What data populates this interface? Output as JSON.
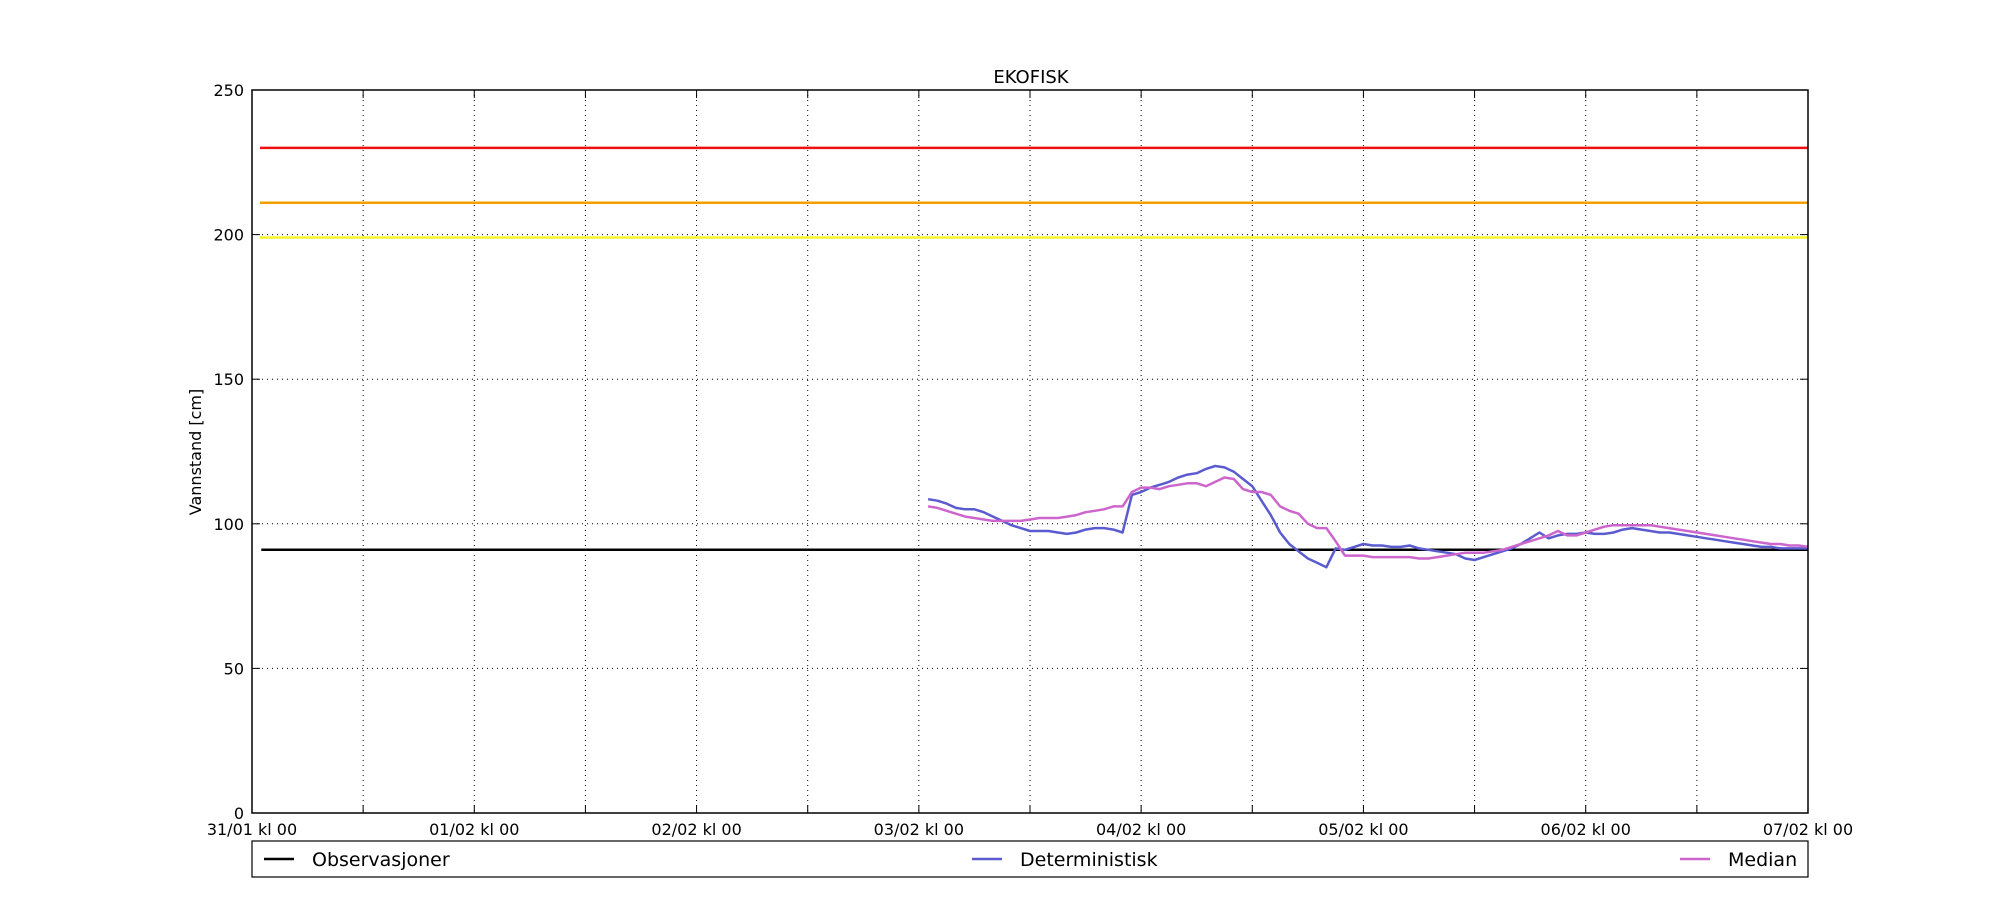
{
  "chart_data": {
    "type": "line",
    "title": "EKOFISK",
    "xlabel": "",
    "ylabel": "Vannstand [cm]",
    "ylim": [
      0,
      250
    ],
    "xlim_hours": [
      0,
      168
    ],
    "grid": true,
    "y_ticks": [
      0,
      50,
      100,
      150,
      200,
      250
    ],
    "x_ticks": [
      {
        "h": 0,
        "label": "31/01 kl 00"
      },
      {
        "h": 24,
        "label": "01/02 kl 00"
      },
      {
        "h": 48,
        "label": "02/02 kl 00"
      },
      {
        "h": 72,
        "label": "03/02 kl 00"
      },
      {
        "h": 96,
        "label": "04/02 kl 00"
      },
      {
        "h": 120,
        "label": "05/02 kl 00"
      },
      {
        "h": 144,
        "label": "06/02 kl 00"
      },
      {
        "h": 168,
        "label": "07/02 kl 00"
      }
    ],
    "x_minor_grid_hours": [
      12,
      36,
      60,
      84,
      108,
      132,
      156
    ],
    "thresholds": [
      {
        "value": 230,
        "color": "#ee1111"
      },
      {
        "value": 211,
        "color": "#f5a000"
      },
      {
        "value": 199,
        "color": "#f7f72a"
      }
    ],
    "legend": {
      "placement": "bottom"
    },
    "series": [
      {
        "name": "Observasjoner",
        "color": "#000000",
        "x": [
          1,
          168
        ],
        "y": [
          91,
          91
        ]
      },
      {
        "name": "Deterministisk",
        "color": "#5b5bd0",
        "x": [
          73,
          74,
          75,
          76,
          77,
          78,
          79,
          80,
          81,
          82,
          83,
          84,
          85,
          86,
          87,
          88,
          89,
          90,
          91,
          92,
          93,
          94,
          95,
          96,
          97,
          98,
          99,
          100,
          101,
          102,
          103,
          104,
          105,
          106,
          107,
          108,
          109,
          110,
          111,
          112,
          113,
          114,
          115,
          116,
          117,
          118,
          119,
          120,
          121,
          122,
          123,
          124,
          125,
          126,
          127,
          128,
          129,
          130,
          131,
          132,
          133,
          134,
          135,
          136,
          137,
          138,
          139,
          140,
          141,
          142,
          143,
          144,
          145,
          146,
          147,
          148,
          149,
          150,
          151,
          152,
          153,
          154,
          155,
          156,
          157,
          158,
          159,
          160,
          161,
          162,
          163,
          164,
          165,
          166,
          167,
          168
        ],
        "y": [
          108.5,
          108,
          107,
          105.5,
          105,
          105,
          104,
          102.5,
          101,
          99.5,
          98.5,
          97.5,
          97.5,
          97.5,
          97,
          96.5,
          97,
          98,
          98.5,
          98.5,
          98,
          97,
          110,
          111,
          112.5,
          113.5,
          114.5,
          116,
          117,
          117.5,
          119,
          120,
          119.5,
          118,
          115.5,
          113,
          108,
          103,
          97,
          93,
          90.5,
          88,
          86.5,
          85,
          91.5,
          91,
          92,
          93,
          92.5,
          92.5,
          92,
          92,
          92.5,
          91.5,
          91,
          90.5,
          90,
          89.5,
          88,
          87.5,
          88.5,
          89.5,
          90.5,
          91.5,
          93,
          95,
          97,
          95,
          96,
          96.5,
          96.5,
          97,
          96.5,
          96.5,
          97,
          98,
          98.5,
          98,
          97.5,
          97,
          97,
          96.5,
          96,
          95.5,
          95,
          94.5,
          94,
          93.5,
          93,
          92.5,
          92,
          92,
          91.5,
          91.5,
          91.5,
          91.5
        ]
      },
      {
        "name": "Median",
        "color": "#cc66cc",
        "x": [
          73,
          74,
          75,
          76,
          77,
          78,
          79,
          80,
          81,
          82,
          83,
          84,
          85,
          86,
          87,
          88,
          89,
          90,
          91,
          92,
          93,
          94,
          95,
          96,
          97,
          98,
          99,
          100,
          101,
          102,
          103,
          104,
          105,
          106,
          107,
          108,
          109,
          110,
          111,
          112,
          113,
          114,
          115,
          116,
          117,
          118,
          119,
          120,
          121,
          122,
          123,
          124,
          125,
          126,
          127,
          128,
          129,
          130,
          131,
          132,
          133,
          134,
          135,
          136,
          137,
          138,
          139,
          140,
          141,
          142,
          143,
          144,
          145,
          146,
          147,
          148,
          149,
          150,
          151,
          152,
          153,
          154,
          155,
          156,
          157,
          158,
          159,
          160,
          161,
          162,
          163,
          164,
          165,
          166,
          167,
          168
        ],
        "y": [
          106,
          105.5,
          104.5,
          103.5,
          102.5,
          102,
          101.5,
          101,
          101,
          101,
          101,
          101.5,
          102,
          102,
          102,
          102.5,
          103,
          104,
          104.5,
          105,
          106,
          106,
          111,
          112.5,
          112.5,
          112,
          113,
          113.5,
          114,
          114,
          113,
          114.5,
          116,
          115.5,
          112,
          111,
          111,
          110,
          106,
          104.5,
          103.5,
          100,
          98.5,
          98.5,
          94,
          89,
          89,
          89,
          88.5,
          88.5,
          88.5,
          88.5,
          88.5,
          88,
          88,
          88.5,
          89,
          89.5,
          90,
          90,
          90,
          90.5,
          91,
          92,
          93,
          94,
          95,
          96,
          97.5,
          96,
          96,
          97,
          98,
          99,
          99.5,
          99.5,
          99.5,
          99.5,
          99.5,
          99,
          98.5,
          98,
          97.5,
          97,
          96.5,
          96,
          95.5,
          95,
          94.5,
          94,
          93.5,
          93,
          93,
          92.5,
          92.5,
          92
        ]
      }
    ]
  }
}
